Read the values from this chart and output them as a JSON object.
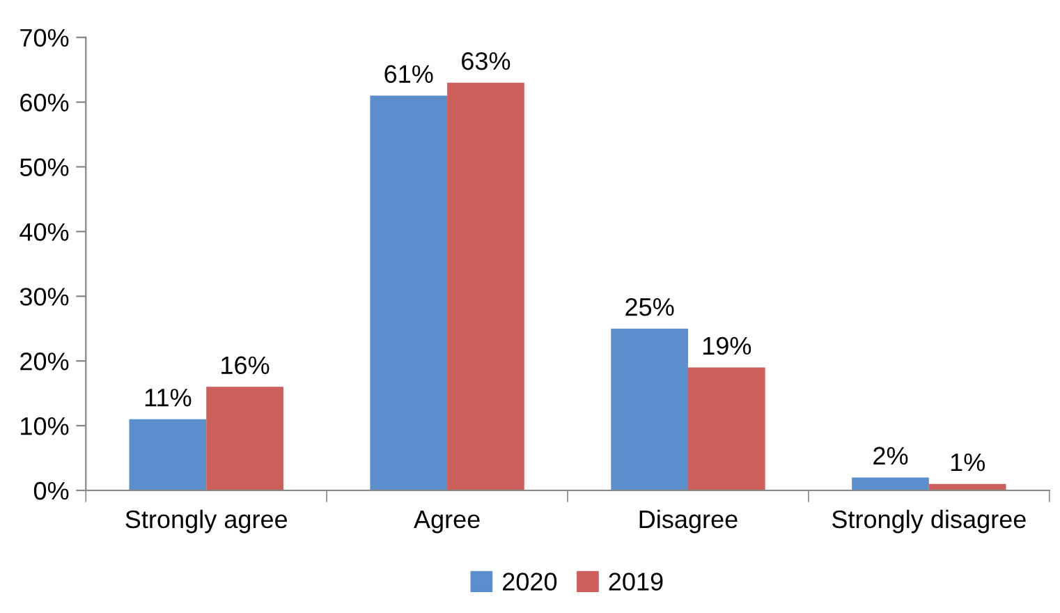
{
  "chart_data": {
    "type": "bar",
    "categories": [
      "Strongly agree",
      "Agree",
      "Disagree",
      "Strongly disagree"
    ],
    "series": [
      {
        "name": "2020",
        "color": "#5b8fcb",
        "values": [
          11,
          61,
          25,
          2
        ],
        "value_labels": [
          "11%",
          "61%",
          "25%",
          "2%"
        ]
      },
      {
        "name": "2019",
        "color": "#cd5f5b",
        "values": [
          16,
          63,
          19,
          1
        ],
        "value_labels": [
          "16%",
          "63%",
          "19%",
          "1%"
        ]
      }
    ],
    "ylim": [
      0,
      70
    ],
    "yticks": [
      {
        "value": 0,
        "label": "0%"
      },
      {
        "value": 10,
        "label": "10%"
      },
      {
        "value": 20,
        "label": "20%"
      },
      {
        "value": 30,
        "label": "30%"
      },
      {
        "value": 40,
        "label": "40%"
      },
      {
        "value": 50,
        "label": "50%"
      },
      {
        "value": 60,
        "label": "60%"
      },
      {
        "value": 70,
        "label": "70%"
      }
    ],
    "grid": false,
    "legend": "bottom"
  }
}
